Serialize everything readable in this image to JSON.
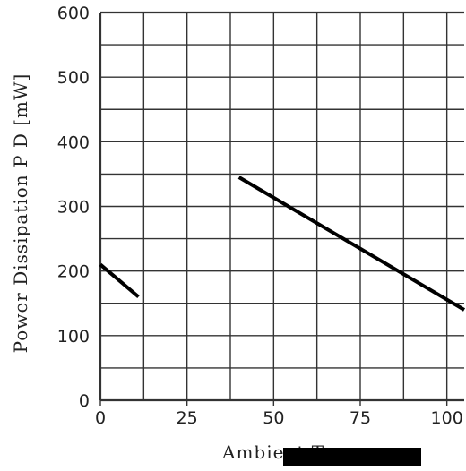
{
  "chart_data": {
    "type": "line",
    "title": "",
    "ylabel": "Power Dissipation P D [mW]",
    "xlabel": "Ambient Ta",
    "xlim": [
      0,
      105
    ],
    "ylim": [
      0,
      600
    ],
    "x_ticks": [
      0,
      25,
      50,
      75,
      100
    ],
    "x_tick_labels": [
      "0",
      "25",
      "50",
      "75",
      "100"
    ],
    "y_ticks": [
      0,
      100,
      200,
      300,
      400,
      500,
      600
    ],
    "y_tick_labels": [
      "0",
      "100",
      "200",
      "300",
      "400",
      "500",
      "600"
    ],
    "grid": true,
    "series": [
      {
        "x": [
          40,
          105
        ],
        "y": [
          345,
          140
        ]
      },
      {
        "x": [
          0,
          11
        ],
        "y": [
          210,
          160
        ]
      }
    ],
    "annotations": {
      "redaction": ""
    }
  },
  "colors": {
    "grid": "#333333",
    "line": "#000000",
    "redaction": "#000000"
  }
}
